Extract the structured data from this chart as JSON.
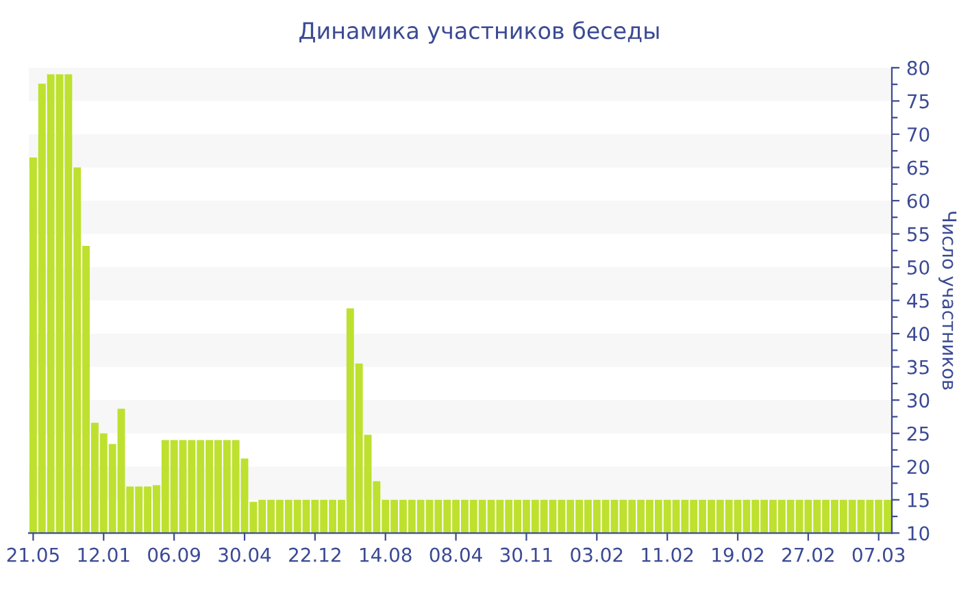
{
  "chart_data": {
    "type": "bar",
    "title": "Динамика участников беседы",
    "ylabel": "Число участников",
    "categories": [
      "21.05",
      null,
      null,
      null,
      null,
      null,
      null,
      null,
      "12.01",
      null,
      null,
      null,
      null,
      null,
      null,
      null,
      "06.09",
      null,
      null,
      null,
      null,
      null,
      null,
      null,
      "30.04",
      null,
      null,
      null,
      null,
      null,
      null,
      null,
      "22.12",
      null,
      null,
      null,
      null,
      null,
      null,
      null,
      "14.08",
      null,
      null,
      null,
      null,
      null,
      null,
      null,
      "08.04",
      null,
      null,
      null,
      null,
      null,
      null,
      null,
      "30.11",
      null,
      null,
      null,
      null,
      null,
      null,
      null,
      "03.02",
      null,
      null,
      null,
      null,
      null,
      null,
      null,
      "11.02",
      null,
      null,
      null,
      null,
      null,
      null,
      null,
      "19.02",
      null,
      null,
      null,
      null,
      null,
      null,
      null,
      "27.02",
      null,
      null,
      null,
      null,
      null,
      null,
      null,
      "07.03",
      null
    ],
    "values": [
      66.5,
      77.6,
      79,
      79,
      79,
      65,
      53.2,
      26.6,
      25,
      23.4,
      28.7,
      17,
      17,
      17,
      17.2,
      24,
      24,
      24,
      24,
      24,
      24,
      24,
      24,
      24,
      21.2,
      14.7,
      15,
      15,
      15,
      15,
      15,
      15,
      15,
      15,
      15,
      15,
      43.8,
      35.5,
      24.8,
      17.8,
      15,
      15,
      15,
      15,
      15,
      15,
      15,
      15,
      15,
      15,
      15,
      15,
      15,
      15,
      15,
      15,
      15,
      15,
      15,
      15,
      15,
      15,
      15,
      15,
      15,
      15,
      15,
      15,
      15,
      15,
      15,
      15,
      15,
      15,
      15,
      15,
      15,
      15,
      15,
      15,
      15,
      15,
      15,
      15,
      15,
      15,
      15,
      15,
      15,
      15,
      15,
      15,
      15,
      15,
      15,
      15,
      15,
      15
    ],
    "color": "#bde12e",
    "ylim": [
      10,
      80
    ],
    "yticks": [
      10,
      {
        "value": 12.5,
        "label": null
      },
      15,
      {
        "value": 17.5,
        "label": null
      },
      20,
      {
        "value": 22.5,
        "label": null
      },
      25,
      {
        "value": 27.5,
        "label": null
      },
      30,
      {
        "value": 32.5,
        "label": null
      },
      35,
      {
        "value": 37.5,
        "label": null
      },
      40,
      {
        "value": 42.5,
        "label": null
      },
      45,
      {
        "value": 47.5,
        "label": null
      },
      50,
      {
        "value": 52.5,
        "label": null
      },
      55,
      {
        "value": 57.5,
        "label": null
      },
      60,
      {
        "value": 62.5,
        "label": null
      },
      65,
      {
        "value": 67.5,
        "label": null
      },
      70,
      {
        "value": 72.5,
        "label": null
      },
      75,
      {
        "value": 77.5,
        "label": null
      },
      80
    ],
    "bands": [
      {
        "axis": "y",
        "from": 15,
        "to": 20,
        "color": "#f7f7f7"
      },
      {
        "axis": "y",
        "from": 25,
        "to": 30,
        "color": "#f7f7f7"
      },
      {
        "axis": "y",
        "from": 35,
        "to": 40,
        "color": "#f7f7f7"
      },
      {
        "axis": "y",
        "from": 45,
        "to": 50,
        "color": "#f7f7f7"
      },
      {
        "axis": "y",
        "from": 55,
        "to": 60,
        "color": "#f7f7f7"
      },
      {
        "axis": "y",
        "from": 65,
        "to": 70,
        "color": "#f7f7f7"
      },
      {
        "axis": "y",
        "from": 75,
        "to": 80,
        "color": "#f7f7f7"
      }
    ],
    "grid": false,
    "legend": false
  }
}
